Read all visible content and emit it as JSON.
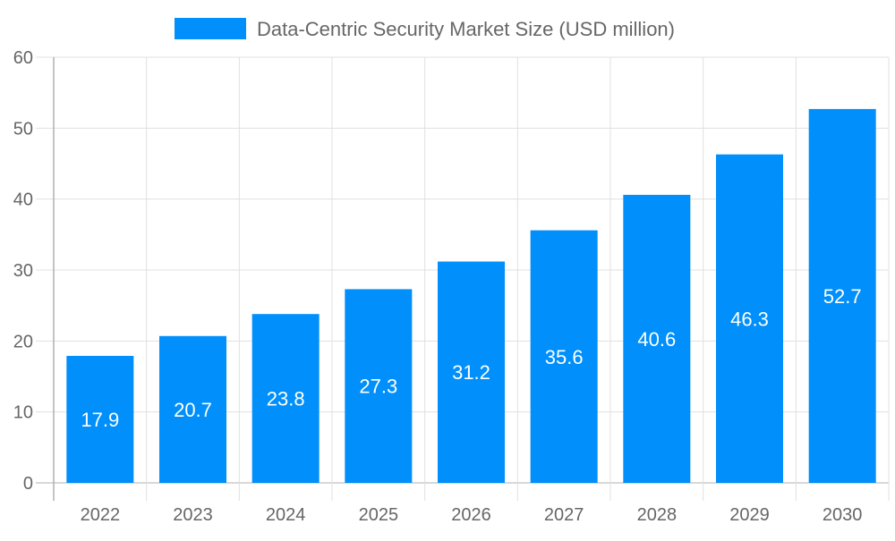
{
  "chart_data": {
    "type": "bar",
    "categories": [
      "2022",
      "2023",
      "2024",
      "2025",
      "2026",
      "2027",
      "2028",
      "2029",
      "2030"
    ],
    "series": [
      {
        "name": "Data-Centric Security Market Size (USD million)",
        "values": [
          17.9,
          20.7,
          23.8,
          27.3,
          31.2,
          35.6,
          40.6,
          46.3,
          52.7
        ],
        "color": "#008ffb"
      }
    ],
    "yticks": [
      "0",
      "10",
      "20",
      "30",
      "40",
      "50",
      "60"
    ],
    "ylim": [
      0,
      60
    ],
    "grid": true,
    "legend": "top",
    "data_labels": true
  }
}
